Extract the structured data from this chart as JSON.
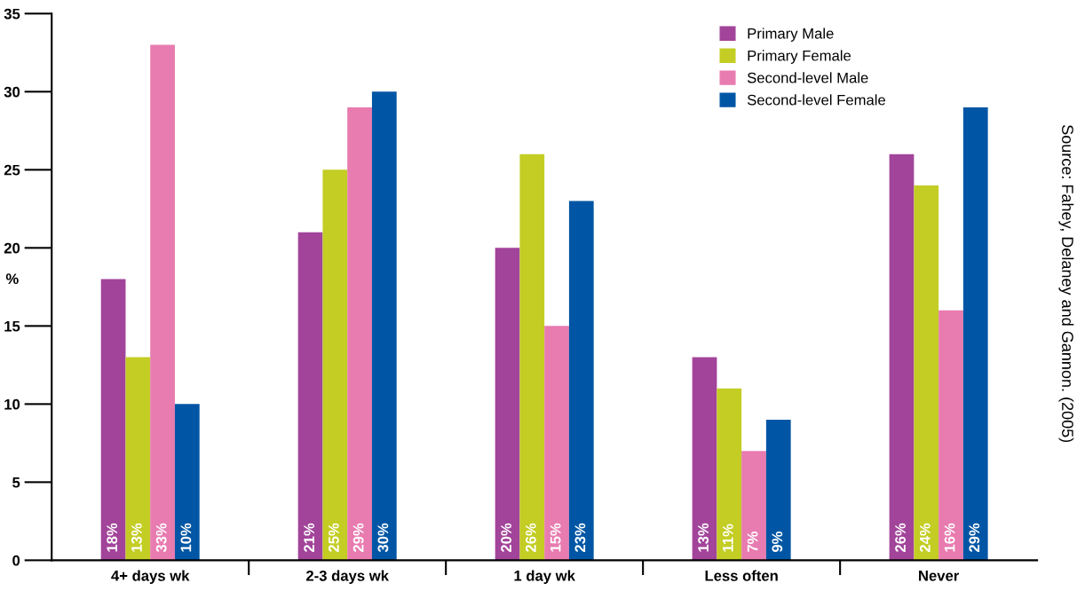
{
  "chart_data": {
    "type": "bar",
    "ylabel": "%",
    "categories": [
      "4+ days wk",
      "2-3 days wk",
      "1 day wk",
      "Less often",
      "Never"
    ],
    "series": [
      {
        "name": "Primary Male",
        "color": "#a2449a",
        "values": [
          18,
          21,
          20,
          13,
          26
        ],
        "value_labels": [
          "18%",
          "21%",
          "20%",
          "13%",
          "26%"
        ]
      },
      {
        "name": "Primary Female",
        "color": "#c3cd23",
        "values": [
          13,
          25,
          26,
          11,
          24
        ],
        "value_labels": [
          "13%",
          "25%",
          "26%",
          "11%",
          "24%"
        ]
      },
      {
        "name": "Second-level Male",
        "color": "#e87bb0",
        "values": [
          33,
          29,
          15,
          7,
          16
        ],
        "value_labels": [
          "33%",
          "29%",
          "15%",
          "7%",
          "16%"
        ]
      },
      {
        "name": "Second-level Female",
        "color": "#0056a4",
        "values": [
          10,
          30,
          23,
          9,
          29
        ],
        "value_labels": [
          "10%",
          "30%",
          "23%",
          "9%",
          "29%"
        ]
      }
    ],
    "ylim": [
      0,
      35
    ],
    "yticks": [
      0,
      5,
      10,
      15,
      20,
      25,
      30,
      35
    ],
    "grid": false,
    "legend": "top right",
    "annotations": [
      "Source: Fahey, Delaney and Gannon. (2005)"
    ]
  }
}
